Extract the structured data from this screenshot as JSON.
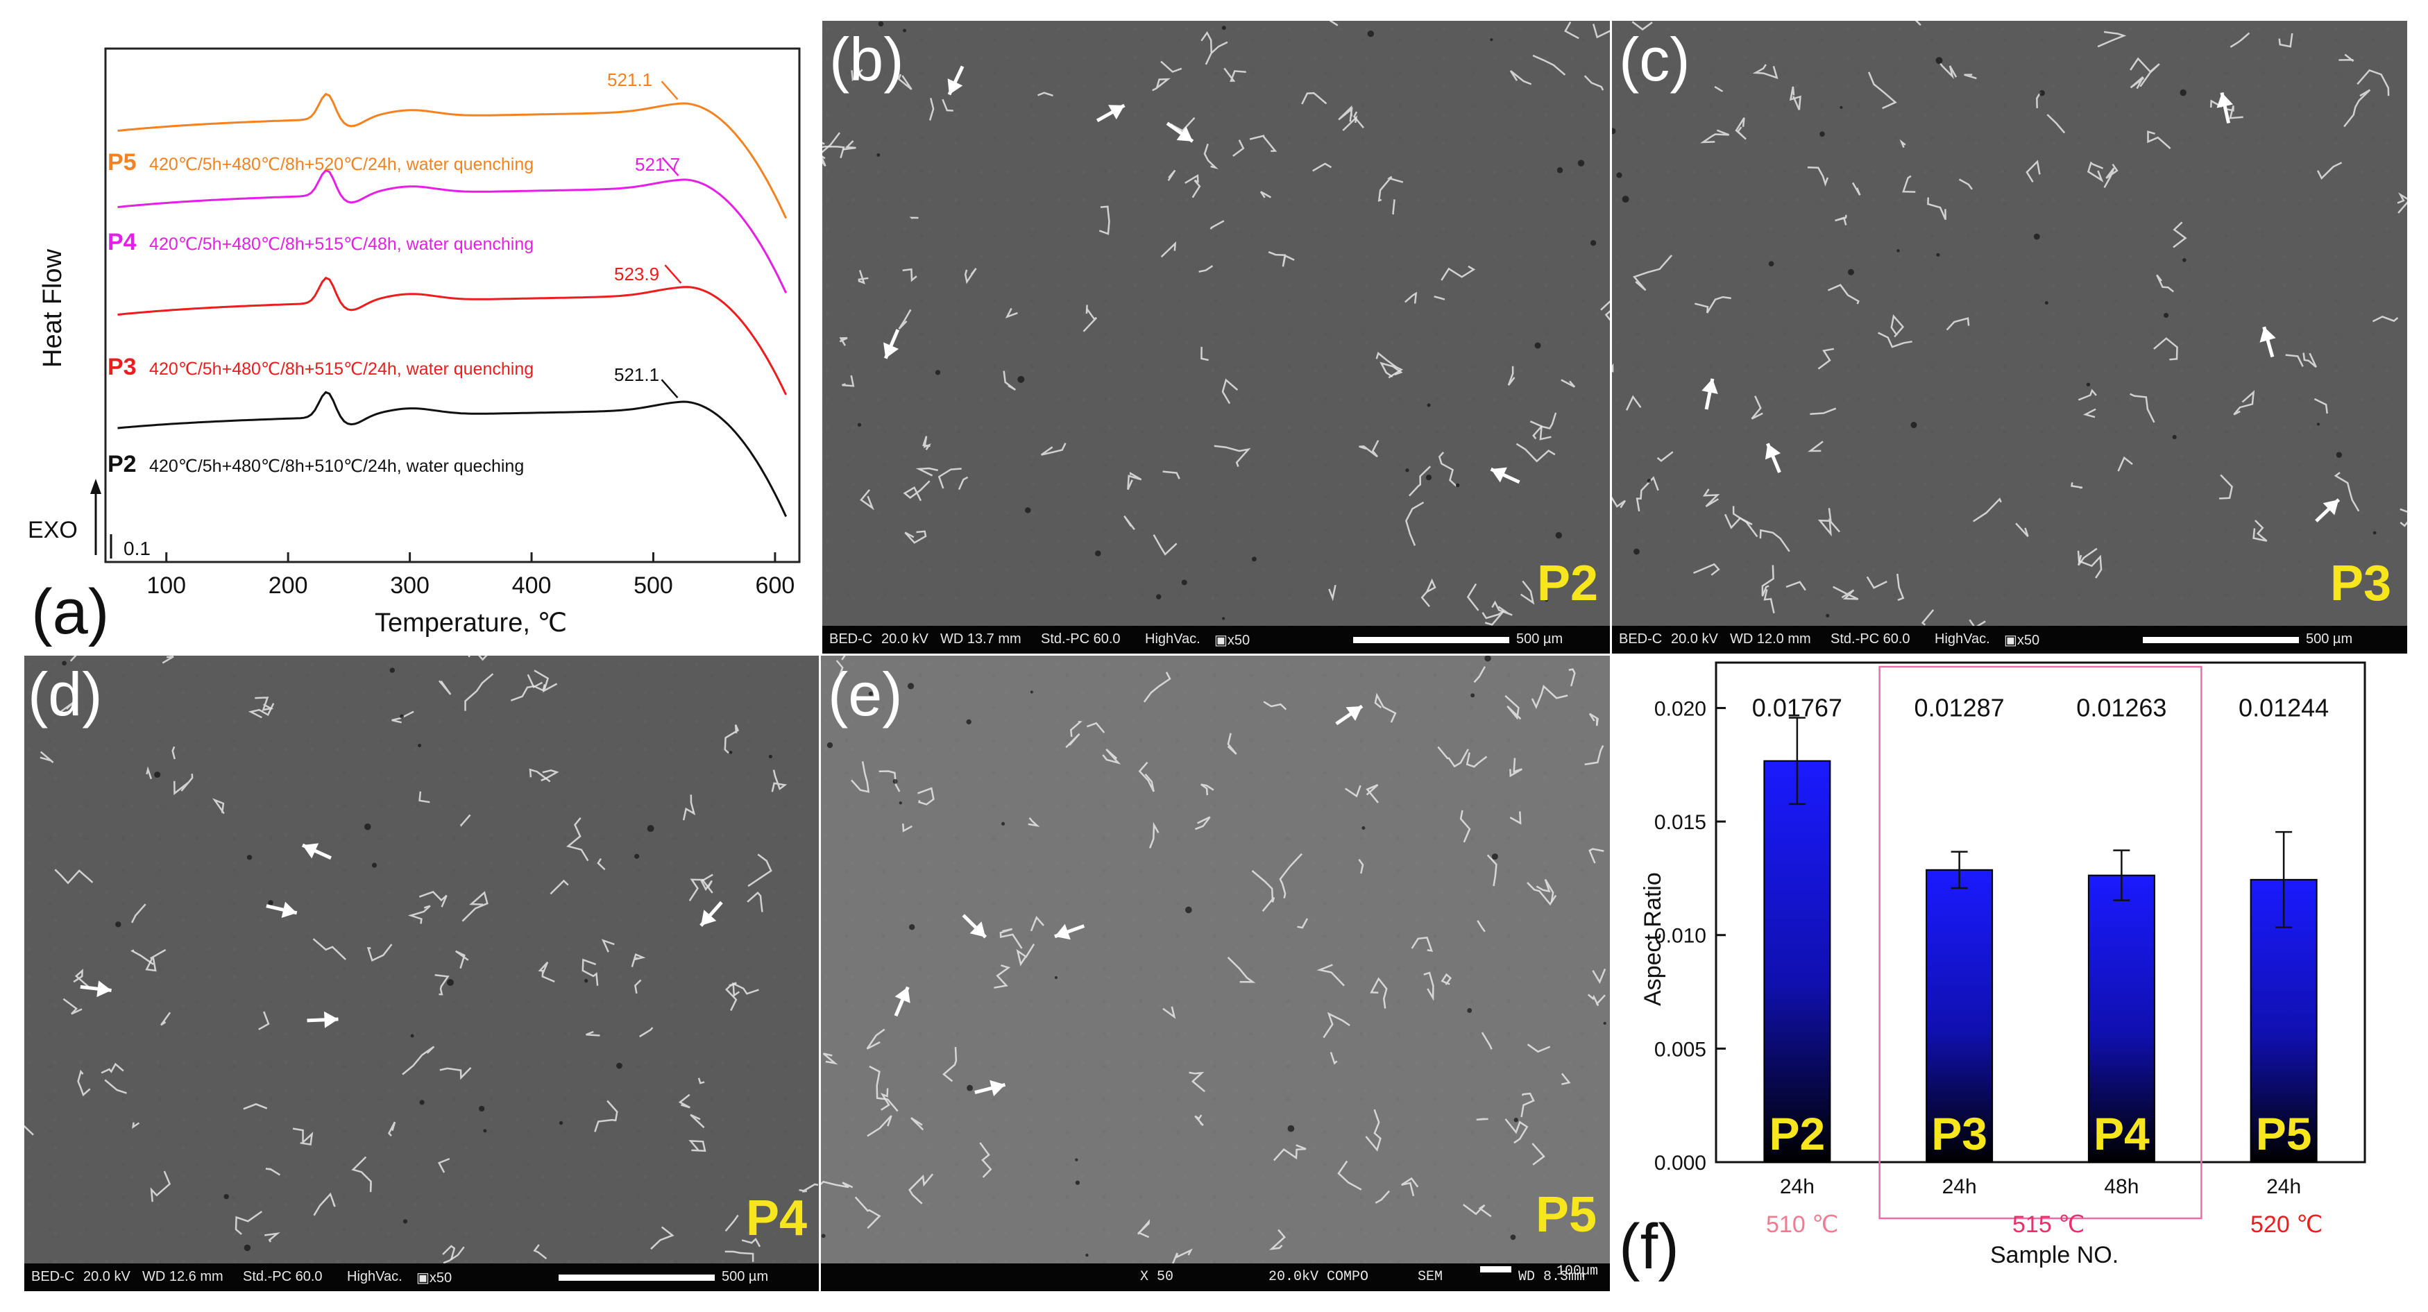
{
  "panel_a": {
    "label": "(a)",
    "ylabel": "Heat Flow",
    "xlabel": "Temperature, ℃",
    "exo_label": "EXO",
    "scale_label": "0.1",
    "xticks": [
      "100",
      "200",
      "300",
      "400",
      "500",
      "600"
    ],
    "curves": [
      {
        "sample": "P5",
        "condition": "420℃/5h+480℃/8h+520℃/24h, water quenching",
        "peak": "521.1",
        "color": "#f58220"
      },
      {
        "sample": "P4",
        "condition": "420℃/5h+480℃/8h+515℃/48h, water quenching",
        "peak": "521.7",
        "color": "#e61ee6"
      },
      {
        "sample": "P3",
        "condition": "420℃/5h+480℃/8h+515℃/24h, water quenching",
        "peak": "523.9",
        "color": "#ee1c1c"
      },
      {
        "sample": "P2",
        "condition": "420℃/5h+480℃/8h+510℃/24h, water queching",
        "peak": "521.1",
        "color": "#111111"
      }
    ]
  },
  "panel_b": {
    "label": "(b)",
    "sample": "P2",
    "info": [
      "BED-C",
      "20.0 kV",
      "WD 13.7 mm",
      "Std.-PC 60.0",
      "HighVac.",
      "▣x50"
    ],
    "scale": "500 µm"
  },
  "panel_c": {
    "label": "(c)",
    "sample": "P3",
    "info": [
      "BED-C",
      "20.0 kV",
      "WD 12.0 mm",
      "Std.-PC 60.0",
      "HighVac.",
      "▣x50"
    ],
    "scale": "500 µm"
  },
  "panel_d": {
    "label": "(d)",
    "sample": "P4",
    "info": [
      "BED-C",
      "20.0 kV",
      "WD 12.6 mm",
      "Std.-PC 60.0",
      "HighVac.",
      "▣x50"
    ],
    "scale": "500 µm"
  },
  "panel_e": {
    "label": "(e)",
    "sample": "P5",
    "info": [
      "X 50",
      "20.0kV COMPO",
      "SEM",
      "WD 8.3mm"
    ],
    "scale": "100µm"
  },
  "panel_f": {
    "label": "(f)",
    "group_labels": [
      "510 ℃",
      "515 ℃",
      "520 ℃"
    ],
    "group_colors": [
      "#f47a8f",
      "#e8316a",
      "#ee1c1c"
    ]
  },
  "chart_data": {
    "type": "bar",
    "title": "",
    "xlabel": "Sample NO.",
    "ylabel": "Aspect Ratio",
    "categories": [
      "P2",
      "P3",
      "P4",
      "P5"
    ],
    "durations": [
      "24h",
      "24h",
      "48h",
      "24h"
    ],
    "values": [
      0.01767,
      0.01287,
      0.01263,
      0.01244
    ],
    "value_labels": [
      "0.01767",
      "0.01287",
      "0.01263",
      "0.01244"
    ],
    "errors": [
      0.0019,
      0.0008,
      0.0011,
      0.0021
    ],
    "ylim": [
      0,
      0.022
    ],
    "yticks": [
      "0.000",
      "0.005",
      "0.010",
      "0.015",
      "0.020"
    ],
    "colors": {
      "bar_top": "#1a1aff",
      "bar_bottom": "#000000",
      "label": "#f7e51d"
    }
  }
}
